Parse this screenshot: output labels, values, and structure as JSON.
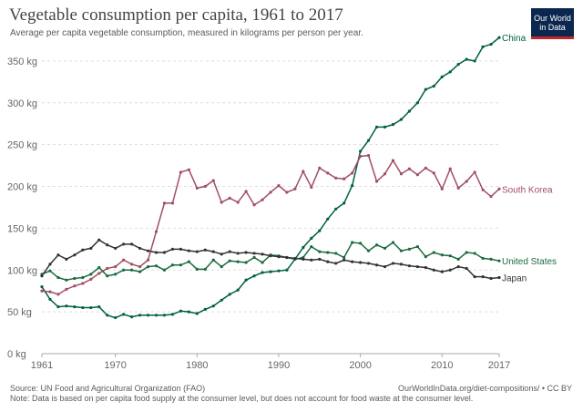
{
  "header": {
    "title": "Vegetable consumption per capita, 1961 to 2017",
    "subtitle": "Average per capita vegetable consumption, measured in kilograms per person per year."
  },
  "logo": {
    "line1": "Our World",
    "line2": "in Data",
    "bg_color": "#0b2750",
    "accent_color": "#c0272d"
  },
  "footer": {
    "source": "Source: UN Food and Agricultural Organization (FAO)",
    "url": "OurWorldInData.org/diet-compositions/ • CC BY",
    "note": "Note: Data is based on per capita food supply at the consumer level, but does not account for food waste at the consumer level."
  },
  "chart_data": {
    "type": "line",
    "title": "Vegetable consumption per capita, 1961 to 2017",
    "xlabel": "",
    "ylabel": "",
    "xlim": [
      1961,
      2017
    ],
    "ylim": [
      0,
      375
    ],
    "grid": "horizontal dashed",
    "x_ticks": [
      1961,
      1970,
      1980,
      1990,
      2000,
      2010,
      2017
    ],
    "y_ticks": [
      {
        "value": 0,
        "label": "0 kg"
      },
      {
        "value": 50,
        "label": "50 kg"
      },
      {
        "value": 100,
        "label": "100 kg"
      },
      {
        "value": 150,
        "label": "150 kg"
      },
      {
        "value": 200,
        "label": "200 kg"
      },
      {
        "value": 250,
        "label": "250 kg"
      },
      {
        "value": 300,
        "label": "300 kg"
      },
      {
        "value": 350,
        "label": "350 kg"
      }
    ],
    "x": [
      1961,
      1962,
      1963,
      1964,
      1965,
      1966,
      1967,
      1968,
      1969,
      1970,
      1971,
      1972,
      1973,
      1974,
      1975,
      1976,
      1977,
      1978,
      1979,
      1980,
      1981,
      1982,
      1983,
      1984,
      1985,
      1986,
      1987,
      1988,
      1989,
      1990,
      1991,
      1992,
      1993,
      1994,
      1995,
      1996,
      1997,
      1998,
      1999,
      2000,
      2001,
      2002,
      2003,
      2004,
      2005,
      2006,
      2007,
      2008,
      2009,
      2010,
      2011,
      2012,
      2013,
      2014,
      2015,
      2016,
      2017
    ],
    "series": [
      {
        "name": "China",
        "color": "#00613d",
        "values": [
          80,
          65,
          56,
          57,
          56,
          55,
          55,
          56,
          46,
          43,
          47,
          44,
          46,
          46,
          46,
          46,
          47,
          51,
          50,
          48,
          53,
          57,
          64,
          71,
          76,
          88,
          93,
          97,
          98,
          99,
          100,
          113,
          127,
          138,
          147,
          161,
          173,
          180,
          201,
          242,
          255,
          271,
          271,
          274,
          280,
          290,
          300,
          316,
          320,
          331,
          337,
          346,
          352,
          350,
          367,
          370,
          378
        ]
      },
      {
        "name": "South Korea",
        "color": "#a04f63",
        "values": [
          75,
          74,
          71,
          77,
          81,
          84,
          89,
          96,
          102,
          104,
          112,
          107,
          104,
          112,
          146,
          180,
          180,
          217,
          220,
          198,
          200,
          207,
          181,
          186,
          181,
          194,
          178,
          184,
          193,
          201,
          193,
          197,
          218,
          199,
          222,
          216,
          210,
          209,
          216,
          236,
          237,
          206,
          215,
          231,
          215,
          221,
          214,
          222,
          216,
          197,
          221,
          198,
          206,
          217,
          196,
          188,
          197
        ]
      },
      {
        "name": "United States",
        "color": "#1a6b3f",
        "values": [
          95,
          99,
          91,
          88,
          90,
          91,
          95,
          103,
          93,
          95,
          100,
          100,
          98,
          104,
          105,
          100,
          106,
          106,
          110,
          101,
          101,
          112,
          104,
          111,
          110,
          109,
          115,
          109,
          118,
          117,
          115,
          113,
          115,
          128,
          122,
          121,
          120,
          115,
          133,
          132,
          123,
          130,
          126,
          133,
          123,
          125,
          128,
          116,
          121,
          118,
          117,
          113,
          121,
          120,
          114,
          113,
          111
        ]
      },
      {
        "name": "Japan",
        "color": "#333333",
        "values": [
          93,
          107,
          118,
          113,
          118,
          124,
          126,
          136,
          130,
          126,
          131,
          131,
          126,
          123,
          121,
          121,
          125,
          125,
          123,
          122,
          124,
          122,
          119,
          122,
          120,
          121,
          120,
          119,
          117,
          116,
          115,
          114,
          113,
          112,
          113,
          110,
          108,
          112,
          110,
          109,
          108,
          106,
          104,
          108,
          107,
          105,
          104,
          103,
          100,
          98,
          100,
          104,
          102,
          92,
          92,
          90,
          91
        ]
      }
    ]
  }
}
